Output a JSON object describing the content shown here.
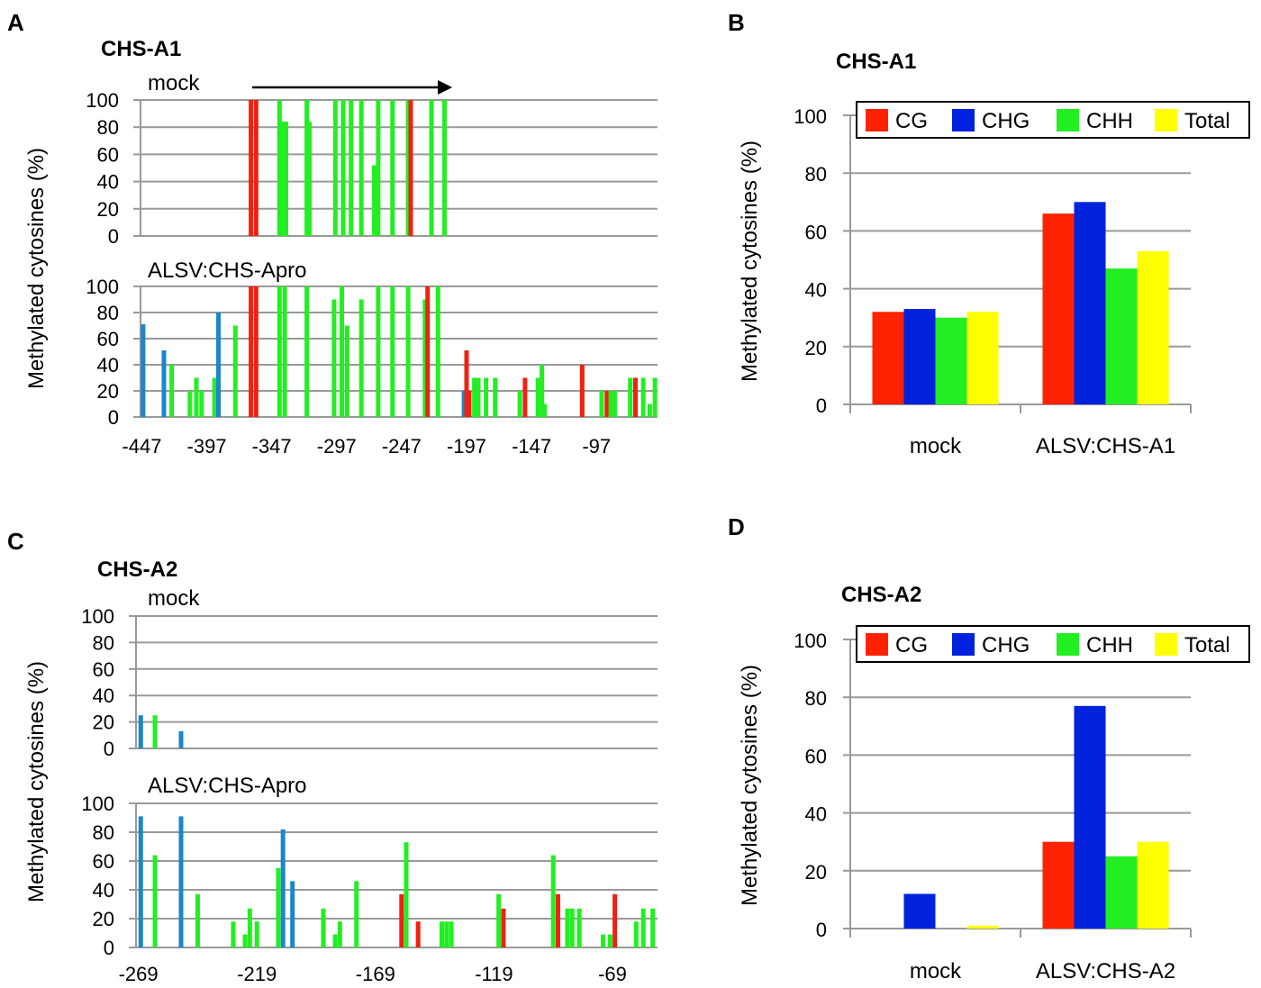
{
  "colors": {
    "CG": "#ff2200",
    "CHG": "#0022dd",
    "CHH": "#22ee22",
    "Total": "#ffff00",
    "profile_CG": "#ee2211",
    "profile_CHG": "#1a86cc",
    "profile_CHH": "#22ee22",
    "grid": "#999999"
  },
  "panels": {
    "A": {
      "label": "A",
      "title": "CHS-A1",
      "sub_top": "mock",
      "sub_bottom": "ALSV:CHS-Apro",
      "ylabel": "Methylated cytosines (%)"
    },
    "B": {
      "label": "B",
      "title": "CHS-A1",
      "ylabel": "Methylated cytosines (%)"
    },
    "C": {
      "label": "C",
      "title": "CHS-A2",
      "sub_top": "mock",
      "sub_bottom": "ALSV:CHS-Apro",
      "ylabel": "Methylated cytosines (%)"
    },
    "D": {
      "label": "D",
      "title": "CHS-A2",
      "ylabel": "Methylated cytosines (%)"
    }
  },
  "chart_data": [
    {
      "panel": "A",
      "type": "bar",
      "title": "CHS-A1",
      "ylabel": "Methylated cytosines (%)",
      "ylim": [
        0,
        100
      ],
      "yticks": [
        0,
        20,
        40,
        60,
        80,
        100
      ],
      "xlim": [
        -448,
        -50
      ],
      "xticks": [
        -447,
        -397,
        -347,
        -297,
        -247,
        -197,
        -147,
        -97
      ],
      "annotation": "arrow from -362 to -208 above mock track",
      "series": [
        {
          "name": "mock",
          "bars": [
            {
              "x": -363,
              "ctx": "CG",
              "v": 100
            },
            {
              "x": -359,
              "ctx": "CG",
              "v": 100
            },
            {
              "x": -341,
              "ctx": "CHH",
              "v": 100
            },
            {
              "x": -338,
              "ctx": "CHH",
              "v": 84
            },
            {
              "x": -336,
              "ctx": "CHH",
              "v": 84
            },
            {
              "x": -320,
              "ctx": "CHH",
              "v": 100
            },
            {
              "x": -318,
              "ctx": "CHH",
              "v": 84
            },
            {
              "x": -298,
              "ctx": "CHH",
              "v": 100
            },
            {
              "x": -292,
              "ctx": "CHH",
              "v": 100
            },
            {
              "x": -286,
              "ctx": "CHH",
              "v": 100
            },
            {
              "x": -278,
              "ctx": "CHH",
              "v": 100
            },
            {
              "x": -268,
              "ctx": "CHH",
              "v": 52
            },
            {
              "x": -265,
              "ctx": "CHH",
              "v": 100
            },
            {
              "x": -254,
              "ctx": "CHH",
              "v": 100
            },
            {
              "x": -242,
              "ctx": "CHH",
              "v": 100
            },
            {
              "x": -240,
              "ctx": "CG",
              "v": 100
            },
            {
              "x": -224,
              "ctx": "CHH",
              "v": 100
            },
            {
              "x": -214,
              "ctx": "CHH",
              "v": 100
            }
          ]
        },
        {
          "name": "ALSV:CHS-Apro",
          "bars": [
            {
              "x": -446,
              "ctx": "CHG",
              "v": 71
            },
            {
              "x": -430,
              "ctx": "CHG",
              "v": 51
            },
            {
              "x": -424,
              "ctx": "CHH",
              "v": 40
            },
            {
              "x": -410,
              "ctx": "CHH",
              "v": 20
            },
            {
              "x": -405,
              "ctx": "CHH",
              "v": 30
            },
            {
              "x": -401,
              "ctx": "CHH",
              "v": 20
            },
            {
              "x": -391,
              "ctx": "CHH",
              "v": 30
            },
            {
              "x": -388,
              "ctx": "CHG",
              "v": 80
            },
            {
              "x": -375,
              "ctx": "CHH",
              "v": 70
            },
            {
              "x": -363,
              "ctx": "CG",
              "v": 100
            },
            {
              "x": -359,
              "ctx": "CG",
              "v": 100
            },
            {
              "x": -341,
              "ctx": "CHH",
              "v": 100
            },
            {
              "x": -337,
              "ctx": "CHH",
              "v": 100
            },
            {
              "x": -320,
              "ctx": "CHH",
              "v": 100
            },
            {
              "x": -299,
              "ctx": "CHH",
              "v": 90
            },
            {
              "x": -293,
              "ctx": "CHH",
              "v": 100
            },
            {
              "x": -289,
              "ctx": "CHH",
              "v": 70
            },
            {
              "x": -278,
              "ctx": "CHH",
              "v": 90
            },
            {
              "x": -265,
              "ctx": "CHH",
              "v": 100
            },
            {
              "x": -254,
              "ctx": "CHH",
              "v": 100
            },
            {
              "x": -242,
              "ctx": "CHH",
              "v": 100
            },
            {
              "x": -229,
              "ctx": "CHH",
              "v": 90
            },
            {
              "x": -227,
              "ctx": "CG",
              "v": 100
            },
            {
              "x": -219,
              "ctx": "CHH",
              "v": 100
            },
            {
              "x": -199,
              "ctx": "CHG",
              "v": 20
            },
            {
              "x": -197,
              "ctx": "CG",
              "v": 51
            },
            {
              "x": -195,
              "ctx": "CG",
              "v": 20
            },
            {
              "x": -191,
              "ctx": "CHH",
              "v": 30
            },
            {
              "x": -188,
              "ctx": "CHH",
              "v": 30
            },
            {
              "x": -182,
              "ctx": "CHH",
              "v": 30
            },
            {
              "x": -175,
              "ctx": "CHH",
              "v": 30
            },
            {
              "x": -156,
              "ctx": "CHH",
              "v": 20
            },
            {
              "x": -152,
              "ctx": "CG",
              "v": 30
            },
            {
              "x": -142,
              "ctx": "CHH",
              "v": 30
            },
            {
              "x": -139,
              "ctx": "CHH",
              "v": 40
            },
            {
              "x": -137,
              "ctx": "CHH",
              "v": 10
            },
            {
              "x": -108,
              "ctx": "CG",
              "v": 40
            },
            {
              "x": -93,
              "ctx": "CHH",
              "v": 20
            },
            {
              "x": -89,
              "ctx": "CG",
              "v": 20
            },
            {
              "x": -86,
              "ctx": "CHH",
              "v": 20
            },
            {
              "x": -83,
              "ctx": "CHH",
              "v": 20
            },
            {
              "x": -71,
              "ctx": "CHH",
              "v": 30
            },
            {
              "x": -67,
              "ctx": "CG",
              "v": 30
            },
            {
              "x": -61,
              "ctx": "CHH",
              "v": 30
            },
            {
              "x": -56,
              "ctx": "CHH",
              "v": 10
            },
            {
              "x": -52,
              "ctx": "CHH",
              "v": 30
            }
          ]
        }
      ]
    },
    {
      "panel": "B",
      "type": "bar",
      "title": "CHS-A1",
      "ylabel": "Methylated cytosines (%)",
      "ylim": [
        0,
        100
      ],
      "yticks": [
        0,
        20,
        40,
        60,
        80,
        100
      ],
      "categories": [
        "mock",
        "ALSV:CHS-A1"
      ],
      "legend": "top",
      "series": [
        {
          "name": "CG",
          "values": [
            32,
            66
          ]
        },
        {
          "name": "CHG",
          "values": [
            33,
            70
          ]
        },
        {
          "name": "CHH",
          "values": [
            30,
            47
          ]
        },
        {
          "name": "Total",
          "values": [
            32,
            53
          ]
        }
      ]
    },
    {
      "panel": "C",
      "type": "bar",
      "title": "CHS-A2",
      "ylabel": "Methylated cytosines (%)",
      "ylim": [
        0,
        100
      ],
      "yticks": [
        0,
        20,
        40,
        60,
        80,
        100
      ],
      "xlim": [
        -270,
        -50
      ],
      "xticks": [
        -269,
        -219,
        -169,
        -119,
        -69
      ],
      "series": [
        {
          "name": "mock",
          "bars": [
            {
              "x": -268,
              "ctx": "CHG",
              "v": 25
            },
            {
              "x": -262,
              "ctx": "CHH",
              "v": 25
            },
            {
              "x": -251,
              "ctx": "CHG",
              "v": 13
            }
          ]
        },
        {
          "name": "ALSV:CHS-Apro",
          "bars": [
            {
              "x": -268,
              "ctx": "CHG",
              "v": 91
            },
            {
              "x": -262,
              "ctx": "CHH",
              "v": 64
            },
            {
              "x": -251,
              "ctx": "CHG",
              "v": 91
            },
            {
              "x": -244,
              "ctx": "CHH",
              "v": 37
            },
            {
              "x": -229,
              "ctx": "CHH",
              "v": 18
            },
            {
              "x": -224,
              "ctx": "CHH",
              "v": 9
            },
            {
              "x": -222,
              "ctx": "CHH",
              "v": 27
            },
            {
              "x": -219,
              "ctx": "CHH",
              "v": 18
            },
            {
              "x": -210,
              "ctx": "CHH",
              "v": 55
            },
            {
              "x": -208,
              "ctx": "CHG",
              "v": 82
            },
            {
              "x": -204,
              "ctx": "CHG",
              "v": 46
            },
            {
              "x": -191,
              "ctx": "CHH",
              "v": 27
            },
            {
              "x": -186,
              "ctx": "CHH",
              "v": 9
            },
            {
              "x": -184,
              "ctx": "CHH",
              "v": 18
            },
            {
              "x": -177,
              "ctx": "CHH",
              "v": 46
            },
            {
              "x": -158,
              "ctx": "CG",
              "v": 37
            },
            {
              "x": -156,
              "ctx": "CHH",
              "v": 73
            },
            {
              "x": -151,
              "ctx": "CG",
              "v": 18
            },
            {
              "x": -141,
              "ctx": "CHH",
              "v": 18
            },
            {
              "x": -139,
              "ctx": "CHH",
              "v": 18
            },
            {
              "x": -137,
              "ctx": "CHH",
              "v": 18
            },
            {
              "x": -117,
              "ctx": "CHH",
              "v": 37
            },
            {
              "x": -115,
              "ctx": "CG",
              "v": 27
            },
            {
              "x": -94,
              "ctx": "CHH",
              "v": 64
            },
            {
              "x": -92,
              "ctx": "CG",
              "v": 37
            },
            {
              "x": -88,
              "ctx": "CHH",
              "v": 27
            },
            {
              "x": -86,
              "ctx": "CHH",
              "v": 27
            },
            {
              "x": -83,
              "ctx": "CHH",
              "v": 27
            },
            {
              "x": -73,
              "ctx": "CHH",
              "v": 9
            },
            {
              "x": -70,
              "ctx": "CHH",
              "v": 9
            },
            {
              "x": -68,
              "ctx": "CG",
              "v": 37
            },
            {
              "x": -59,
              "ctx": "CHH",
              "v": 18
            },
            {
              "x": -56,
              "ctx": "CHH",
              "v": 27
            },
            {
              "x": -52,
              "ctx": "CHH",
              "v": 27
            }
          ]
        }
      ]
    },
    {
      "panel": "D",
      "type": "bar",
      "title": "CHS-A2",
      "ylabel": "Methylated cytosines (%)",
      "ylim": [
        0,
        100
      ],
      "yticks": [
        0,
        20,
        40,
        60,
        80,
        100
      ],
      "categories": [
        "mock",
        "ALSV:CHS-A2"
      ],
      "legend": "top",
      "series": [
        {
          "name": "CG",
          "values": [
            0,
            30
          ]
        },
        {
          "name": "CHG",
          "values": [
            12,
            77
          ]
        },
        {
          "name": "CHH",
          "values": [
            0,
            25
          ]
        },
        {
          "name": "Total",
          "values": [
            1,
            30
          ]
        }
      ]
    }
  ]
}
